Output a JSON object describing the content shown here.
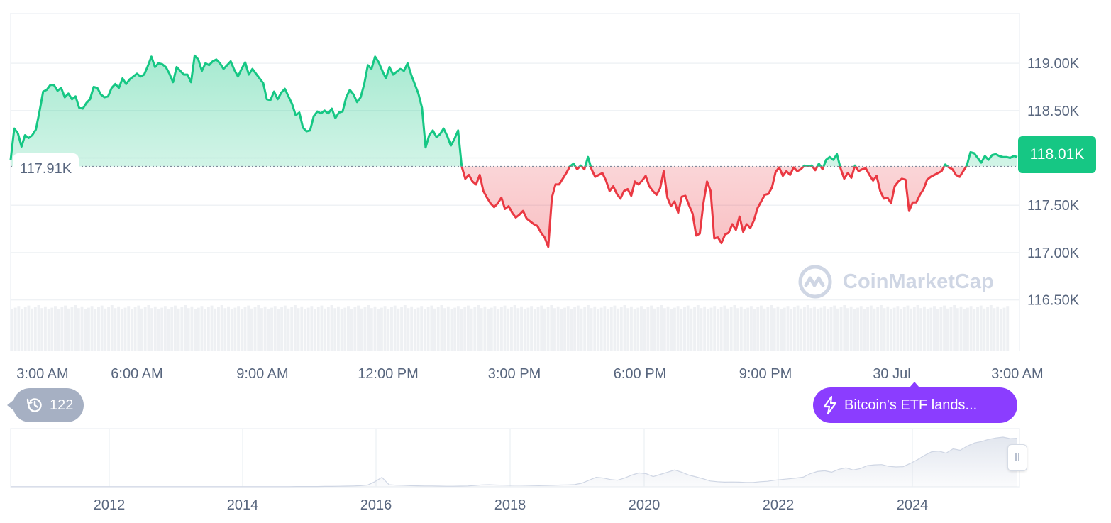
{
  "chart_data": {
    "type": "line",
    "x_labels": [
      "3:00 AM",
      "6:00 AM",
      "9:00 AM",
      "12:00 PM",
      "3:00 PM",
      "6:00 PM",
      "9:00 PM",
      "30 Jul",
      "3:00 AM"
    ],
    "y_ticks": [
      "119.00K",
      "118.50K",
      "118.00K",
      "117.50K",
      "117.00K",
      "116.50K"
    ],
    "y_tick_values": [
      119000,
      118500,
      118000,
      117500,
      117000,
      116500
    ],
    "ylim": [
      116500,
      119500
    ],
    "baseline_value": 117910,
    "baseline_label": "117.91K",
    "current_value": 118010,
    "current_label": "118.01K",
    "series": [
      {
        "values": [
          117980,
          118310,
          118260,
          118120,
          118240,
          118210,
          118240,
          118300,
          118490,
          118700,
          118720,
          118770,
          118770,
          118710,
          118740,
          118640,
          118680,
          118620,
          118650,
          118530,
          118520,
          118580,
          118620,
          118750,
          118740,
          118670,
          118640,
          118650,
          118740,
          118780,
          118740,
          118840,
          118780,
          118830,
          118860,
          118890,
          118860,
          118880,
          118970,
          119070,
          118960,
          119000,
          118990,
          118960,
          118890,
          118800,
          118960,
          118920,
          118880,
          118880,
          118800,
          119080,
          119040,
          118920,
          119000,
          118980,
          119020,
          119040,
          119000,
          118940,
          118980,
          119020,
          118930,
          118860,
          118940,
          119010,
          118880,
          118940,
          118890,
          118840,
          118790,
          118620,
          118610,
          118700,
          118620,
          118690,
          118730,
          118650,
          118570,
          118450,
          118480,
          118320,
          118280,
          118290,
          118440,
          118490,
          118470,
          118500,
          118470,
          118520,
          118420,
          118480,
          118490,
          118640,
          118720,
          118670,
          118590,
          118640,
          118780,
          118980,
          118940,
          119070,
          119010,
          118920,
          118840,
          118960,
          118880,
          118910,
          118940,
          118920,
          119000,
          118880,
          118780,
          118680,
          118530,
          118110,
          118240,
          118290,
          118220,
          118250,
          118310,
          118230,
          118130,
          118200,
          118290,
          117910,
          117780,
          117820,
          117750,
          117720,
          117820,
          117650,
          117580,
          117520,
          117480,
          117520,
          117580,
          117460,
          117490,
          117420,
          117370,
          117400,
          117440,
          117360,
          117330,
          117300,
          117280,
          117210,
          117160,
          117060,
          117580,
          117720,
          117720,
          117780,
          117840,
          117910,
          117940,
          117880,
          117920,
          117880,
          118010,
          117880,
          117800,
          117820,
          117840,
          117760,
          117650,
          117700,
          117620,
          117570,
          117650,
          117670,
          117600,
          117750,
          117720,
          117760,
          117810,
          117700,
          117650,
          117610,
          117680,
          117860,
          117580,
          117490,
          117540,
          117420,
          117590,
          117600,
          117500,
          117410,
          117180,
          117200,
          117520,
          117750,
          117650,
          117150,
          117160,
          117100,
          117190,
          117210,
          117300,
          117240,
          117380,
          117220,
          117300,
          117260,
          117340,
          117470,
          117540,
          117610,
          117620,
          117690,
          117850,
          117900,
          117810,
          117860,
          117820,
          117900,
          117860,
          117880,
          117920,
          117910,
          117920,
          117870,
          117940,
          117880,
          117980,
          118010,
          117980,
          118040,
          117890,
          117780,
          117840,
          117790,
          117920,
          117860,
          117880,
          117890,
          117820,
          117760,
          117810,
          117650,
          117570,
          117580,
          117520,
          117700,
          117750,
          117780,
          117770,
          117440,
          117530,
          117530,
          117610,
          117670,
          117770,
          117800,
          117820,
          117840,
          117860,
          117930,
          117900,
          117880,
          117820,
          117800,
          117860,
          117920,
          118060,
          118050,
          118000,
          117950,
          118020,
          117980,
          118030,
          118040,
          118020,
          118010,
          118010,
          118000,
          118020,
          118010
        ]
      }
    ],
    "navigator": {
      "x_labels": [
        "2012",
        "2014",
        "2016",
        "2018",
        "2020",
        "2022",
        "2024"
      ],
      "values": [
        0.1,
        0.1,
        0.1,
        0.1,
        0.1,
        0.1,
        0.1,
        0.1,
        0.1,
        0.1,
        0.1,
        0.1,
        0.1,
        0.1,
        0.1,
        0.1,
        0.1,
        0.1,
        0.1,
        0.1,
        0.1,
        0.1,
        0.1,
        0.1,
        0.1,
        0.1,
        0.1,
        0.1,
        0.1,
        0.1,
        0.1,
        0.1,
        0.1,
        0.1,
        0.1,
        0.1,
        0.1,
        0.1,
        0.1,
        0.1,
        0.2,
        0.2,
        0.2,
        0.2,
        0.3,
        0.3,
        0.4,
        0.5,
        0.6,
        0.8,
        1.2,
        3.5,
        6.5,
        1.4,
        1.1,
        1.0,
        0.8,
        0.7,
        0.6,
        0.6,
        0.5,
        0.4,
        0.4,
        0.5,
        0.6,
        0.9,
        1.3,
        1.4,
        1.2,
        1.1,
        1.0,
        1.1,
        1.0,
        0.9,
        0.8,
        0.9,
        1.0,
        1.2,
        1.3,
        1.5,
        2.5,
        4.5,
        6.5,
        6.0,
        5.0,
        4.5,
        6.0,
        8.0,
        9.5,
        9.0,
        7.0,
        8.5,
        10.0,
        11.5,
        10.0,
        8.0,
        6.8,
        5.5,
        4.0,
        3.5,
        3.2,
        3.3,
        3.2,
        3.0,
        3.0,
        3.5,
        3.8,
        4.5,
        5.0,
        5.5,
        6.0,
        6.6,
        9.0,
        10.5,
        11.0,
        10.0,
        12.0,
        13.0,
        11.5,
        12.5,
        14.5,
        15.0,
        15.2,
        14.0,
        13.6,
        13.8,
        16.0,
        18.5,
        21.5,
        24.0,
        24.5,
        23.0,
        26.0,
        25.0,
        28.0,
        30.0,
        31.0,
        32.5,
        33.4,
        34.0,
        33.0,
        33.2
      ]
    }
  },
  "ui": {
    "watermark_text": "CoinMarketCap",
    "history_count": "122",
    "news_label": "Bitcoin's ETF lands...",
    "up_color": "#16c784",
    "down_color": "#ea3943",
    "accent_purple": "#8b3dff",
    "icons": [
      "history-icon",
      "lightning-icon",
      "coinmarketcap-logo-icon",
      "drag-handle-icon"
    ]
  }
}
